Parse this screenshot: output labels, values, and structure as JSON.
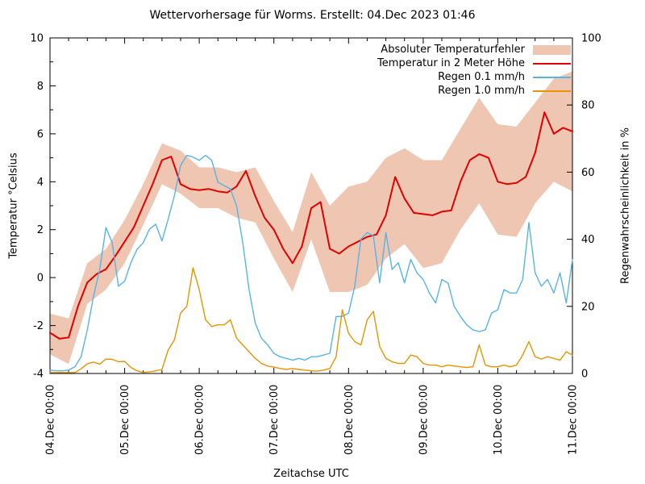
{
  "chart_data": {
    "type": "line",
    "title": "Wettervorhersage für Worms. Erstellt: 04.Dec 2023 01:46",
    "x_axis": {
      "label": "Zeitachse UTC",
      "range_hours": [
        0,
        168
      ],
      "major_tick_every_hours": 24,
      "minor_tick_every_hours": 6,
      "tick_labels": [
        "04.Dec 00:00",
        "05.Dec 00:00",
        "06.Dec 00:00",
        "07.Dec 00:00",
        "08.Dec 00:00",
        "09.Dec 00:00",
        "10.Dec 00:00",
        "11.Dec 00:00"
      ]
    },
    "y_left": {
      "label": "Temperatur °Celsius",
      "range": [
        -4,
        10
      ],
      "ticks": [
        -4,
        -2,
        0,
        2,
        4,
        6,
        8,
        10
      ],
      "minor_step": 1
    },
    "y_right": {
      "label": "Regenwahrscheinlichkeit in %",
      "range": [
        0,
        100
      ],
      "ticks": [
        0,
        20,
        40,
        60,
        80,
        100
      ]
    },
    "grid": false,
    "legend_position": "top-right-inside",
    "legend": [
      {
        "label": "Absoluter Temperaturfehler",
        "type": "band",
        "color": "#eec6b2"
      },
      {
        "label": "Temperatur in 2 Meter Höhe",
        "type": "line",
        "color": "#e00000"
      },
      {
        "label": "Regen 0.1 mm/h",
        "type": "line",
        "color": "#56b4e9"
      },
      {
        "label": "Regen 1.0 mm/h",
        "type": "line",
        "color": "#e69500"
      }
    ],
    "series": {
      "error_band": {
        "name": "Absoluter Temperaturfehler",
        "axis": "left",
        "color": "#eec6b2",
        "times_h": [
          0,
          6,
          12,
          18,
          24,
          30,
          36,
          42,
          48,
          54,
          60,
          66,
          72,
          78,
          84,
          90,
          96,
          102,
          108,
          114,
          120,
          126,
          132,
          138,
          144,
          150,
          156,
          162,
          168
        ],
        "upper": [
          -1.5,
          -1.7,
          0.6,
          1.2,
          2.4,
          3.9,
          5.6,
          5.3,
          4.6,
          4.6,
          4.4,
          4.6,
          3.2,
          1.9,
          4.4,
          3.0,
          3.8,
          4.0,
          5.0,
          5.4,
          4.9,
          4.9,
          6.2,
          7.5,
          6.4,
          6.3,
          7.3,
          8.3,
          8.6
        ],
        "lower": [
          -3.2,
          -3.6,
          -1.1,
          -0.5,
          0.6,
          2.2,
          3.9,
          3.5,
          2.9,
          2.9,
          2.5,
          2.3,
          0.8,
          -0.6,
          1.6,
          -0.6,
          -0.6,
          -0.3,
          0.8,
          1.4,
          0.4,
          0.6,
          2.0,
          3.1,
          1.8,
          1.7,
          3.1,
          4.0,
          3.6
        ]
      },
      "temperature": {
        "name": "Temperatur in 2 Meter Höhe",
        "axis": "left",
        "color": "#e00000",
        "times_h": [
          0,
          3,
          6,
          9,
          12,
          15,
          18,
          21,
          24,
          27,
          30,
          33,
          36,
          39,
          42,
          45,
          48,
          51,
          54,
          57,
          60,
          63,
          66,
          69,
          72,
          75,
          78,
          81,
          84,
          87,
          90,
          93,
          96,
          99,
          102,
          105,
          108,
          111,
          114,
          117,
          120,
          123,
          126,
          129,
          132,
          135,
          138,
          141,
          144,
          147,
          150,
          153,
          156,
          159,
          162,
          165,
          168
        ],
        "values": [
          -2.3,
          -2.55,
          -2.5,
          -1.2,
          -0.2,
          0.15,
          0.35,
          0.9,
          1.5,
          2.1,
          3.0,
          3.9,
          4.9,
          5.05,
          3.9,
          3.7,
          3.65,
          3.7,
          3.6,
          3.55,
          3.8,
          4.45,
          3.4,
          2.5,
          2.0,
          1.2,
          0.6,
          1.3,
          2.9,
          3.15,
          1.2,
          1.0,
          1.3,
          1.5,
          1.7,
          1.8,
          2.6,
          4.2,
          3.3,
          2.7,
          2.65,
          2.6,
          2.75,
          2.8,
          4.0,
          4.9,
          5.15,
          5.0,
          4.0,
          3.9,
          3.95,
          4.2,
          5.2,
          6.9,
          6.0,
          6.25,
          6.1
        ]
      },
      "rain_01mm": {
        "name": "Regen 0.1 mm/h",
        "axis": "right",
        "color": "#56b4e9",
        "times_h": [
          0,
          2,
          4,
          6,
          8,
          10,
          12,
          14,
          16,
          18,
          20,
          22,
          24,
          26,
          28,
          30,
          32,
          34,
          36,
          38,
          40,
          42,
          44,
          46,
          48,
          50,
          52,
          54,
          56,
          58,
          60,
          62,
          64,
          66,
          68,
          70,
          72,
          74,
          76,
          78,
          80,
          82,
          84,
          86,
          88,
          90,
          92,
          94,
          96,
          98,
          100,
          102,
          104,
          106,
          108,
          110,
          112,
          114,
          116,
          118,
          120,
          122,
          124,
          126,
          128,
          130,
          132,
          134,
          136,
          138,
          140,
          142,
          144,
          146,
          148,
          150,
          152,
          154,
          156,
          158,
          160,
          162,
          164,
          166,
          168
        ],
        "values": [
          1,
          0.8,
          0.8,
          1,
          2,
          5,
          13,
          23,
          31,
          43.5,
          39,
          26,
          27.5,
          33,
          37,
          39,
          43,
          44.5,
          39.5,
          46,
          53,
          62,
          65,
          64.5,
          63.5,
          65,
          63.5,
          57,
          56,
          55,
          50,
          39,
          25,
          15,
          10.5,
          8.5,
          6,
          5,
          4.5,
          4,
          4.5,
          4,
          5,
          5,
          5.5,
          6,
          17,
          17,
          18,
          26,
          40,
          42,
          41,
          27,
          42,
          31,
          33,
          27,
          34,
          30,
          28,
          24,
          21,
          28,
          27,
          20,
          17,
          14.5,
          13,
          12.5,
          13,
          18,
          19,
          25,
          24,
          24,
          28,
          45,
          30,
          26,
          28,
          24,
          30,
          21,
          34
        ]
      },
      "rain_10mm": {
        "name": "Regen 1.0 mm/h",
        "axis": "right",
        "color": "#e69500",
        "times_h": [
          0,
          2,
          4,
          6,
          8,
          10,
          12,
          14,
          16,
          18,
          20,
          22,
          24,
          26,
          28,
          30,
          32,
          34,
          36,
          38,
          40,
          42,
          44,
          46,
          48,
          50,
          52,
          54,
          56,
          58,
          60,
          62,
          64,
          66,
          68,
          70,
          72,
          74,
          76,
          78,
          80,
          82,
          84,
          86,
          88,
          90,
          92,
          94,
          96,
          98,
          100,
          102,
          104,
          106,
          108,
          110,
          112,
          114,
          116,
          118,
          120,
          122,
          124,
          126,
          128,
          130,
          132,
          134,
          136,
          138,
          140,
          142,
          144,
          146,
          148,
          150,
          152,
          154,
          156,
          158,
          160,
          162,
          164,
          166,
          168
        ],
        "values": [
          0.3,
          0.3,
          0.3,
          0.3,
          0.3,
          1.4,
          2.9,
          3.4,
          2.8,
          4.3,
          4.2,
          3.5,
          3.6,
          1.8,
          0.8,
          0.3,
          0.5,
          0.8,
          1.2,
          7,
          10,
          18,
          20,
          31.5,
          25,
          16,
          14,
          14.5,
          14.5,
          16,
          10.5,
          8.5,
          6.5,
          4.5,
          3,
          2.2,
          1.9,
          1.5,
          1.2,
          1.5,
          1.2,
          1,
          0.8,
          0.7,
          1,
          1.5,
          5,
          19,
          12,
          9.5,
          8.5,
          16,
          18.5,
          8,
          4.5,
          3.5,
          3,
          3,
          5.5,
          5,
          3,
          2.5,
          2.5,
          2,
          2.5,
          2.2,
          2,
          1.8,
          2,
          8.5,
          2.5,
          2,
          2,
          2.5,
          2,
          2.5,
          5.5,
          9.5,
          5,
          4.3,
          5,
          4.5,
          4,
          6.5,
          5.5
        ]
      }
    }
  }
}
